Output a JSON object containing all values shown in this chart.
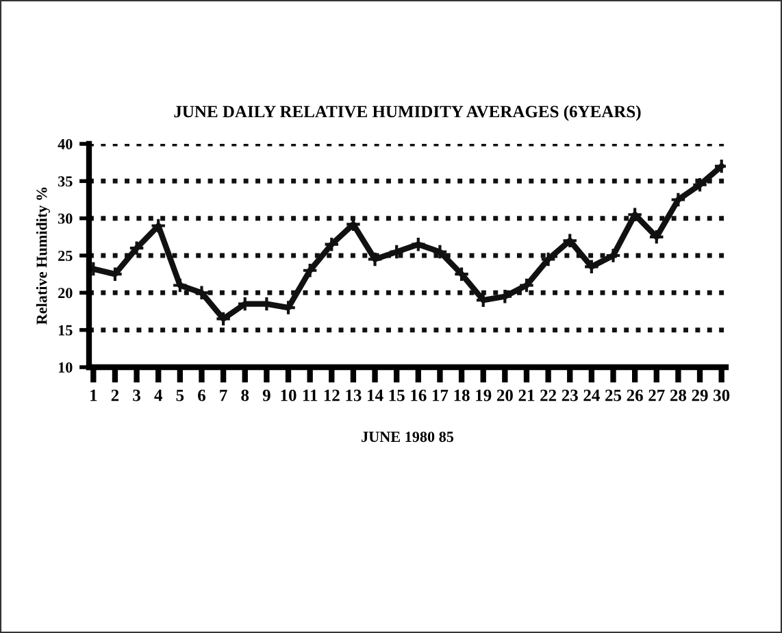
{
  "chart_data": {
    "type": "line",
    "title": "JUNE DAILY RELATIVE HUMIDITY AVERAGES (6YEARS)",
    "xlabel": "JUNE 1980 85",
    "ylabel": "Relative Humidity %",
    "categories": [
      "1",
      "2",
      "3",
      "4",
      "5",
      "6",
      "7",
      "8",
      "9",
      "10",
      "11",
      "12",
      "13",
      "14",
      "15",
      "16",
      "17",
      "18",
      "19",
      "20",
      "21",
      "22",
      "23",
      "24",
      "25",
      "26",
      "27",
      "28",
      "29",
      "30"
    ],
    "series": [
      {
        "color": "#111111",
        "values": [
          23.2,
          22.5,
          26,
          29,
          21,
          20,
          16.5,
          18.5,
          18.5,
          18,
          23,
          26.5,
          29.2,
          24.5,
          25.5,
          26.5,
          25.5,
          22.5,
          19,
          19.5,
          21,
          24.5,
          27,
          23.5,
          25,
          30.5,
          27.5,
          32.5,
          34.5,
          37
        ]
      }
    ],
    "ylim": [
      10,
      40
    ],
    "yticks": [
      10,
      15,
      20,
      25,
      30,
      35,
      40
    ],
    "grid": "y",
    "marker": "cross",
    "line_style": "solid"
  }
}
